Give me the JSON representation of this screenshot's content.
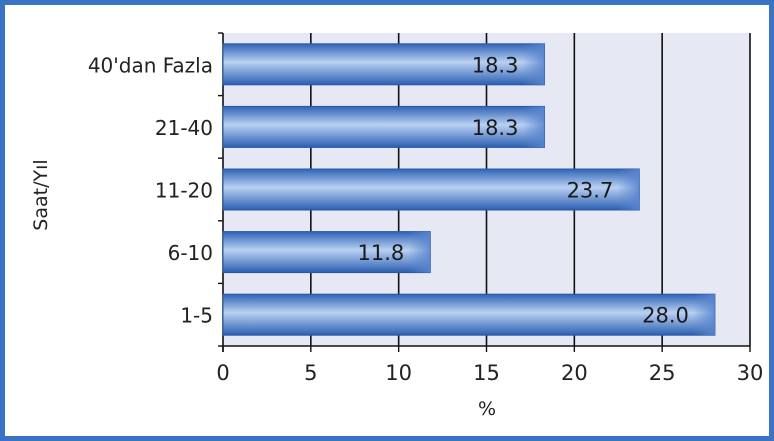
{
  "chart_data": {
    "type": "bar",
    "orientation": "horizontal",
    "categories": [
      "1-5",
      "6-10",
      "11-20",
      "21-40",
      "40'dan Fazla"
    ],
    "values": [
      28.0,
      11.8,
      23.7,
      18.3,
      18.3
    ],
    "value_labels": [
      "28.0",
      "11.8",
      "23.7",
      "18.3",
      "18.3"
    ],
    "xlabel": "%",
    "ylabel": "Saat/Yıl",
    "xlim": [
      0,
      30
    ],
    "xticks": [
      0,
      5,
      10,
      15,
      20,
      25,
      30
    ],
    "grid": "vertical",
    "colors": {
      "bar": "#3a6fc2",
      "bar_highlight": "#b9d0f2",
      "bar_edge": "#2a57a3",
      "plot_background": "#e6e9f4",
      "frame": "#3b73c4",
      "gridline": "#111111"
    }
  }
}
